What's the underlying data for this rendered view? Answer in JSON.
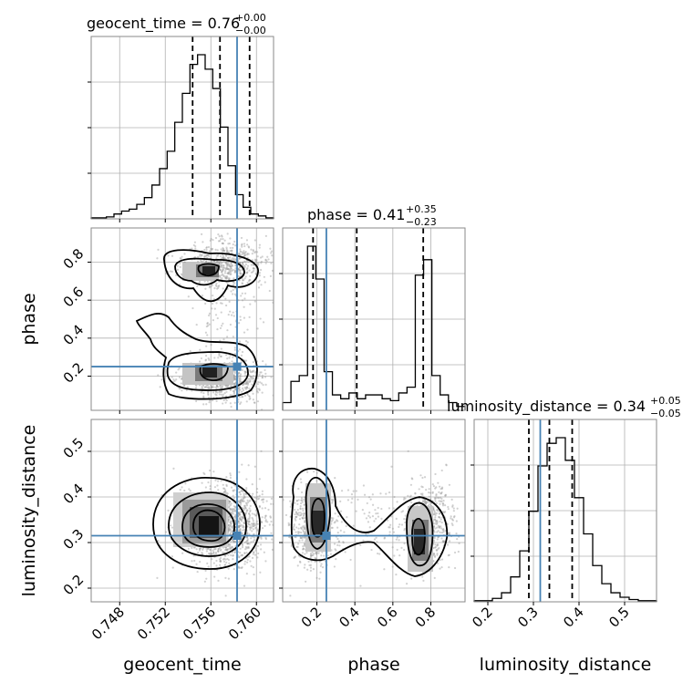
{
  "chart_data": {
    "type": "corner",
    "parameters": [
      "geocent_time",
      "phase",
      "luminosity_distance"
    ],
    "titles": [
      {
        "param": "geocent_time",
        "median": "0.76",
        "plus": "+0.00",
        "minus": "−0.00"
      },
      {
        "param": "phase",
        "median": "0.41",
        "plus": "+0.35",
        "minus": "−0.23"
      },
      {
        "param": "luminosity_distance",
        "median": "0.34",
        "plus": "+0.05",
        "minus": "−0.05"
      }
    ],
    "ranges": {
      "geocent_time": [
        0.7455,
        0.7615
      ],
      "phase": [
        0.02,
        0.98
      ],
      "luminosity_distance": [
        0.17,
        0.57
      ]
    },
    "ticks": {
      "geocent_time": [
        0.748,
        0.752,
        0.756,
        0.76
      ],
      "phase_x": [
        0.2,
        0.4,
        0.6,
        0.8
      ],
      "phase_y": [
        0.2,
        0.4,
        0.6,
        0.8
      ],
      "luminosity_distance_x": [
        0.2,
        0.3,
        0.4,
        0.5
      ],
      "luminosity_distance_y": [
        0.2,
        0.3,
        0.4,
        0.5
      ]
    },
    "tick_labels": {
      "geocent_time": [
        "0.748",
        "0.752",
        "0.756",
        "0.760"
      ],
      "phase": [
        "0.2",
        "0.4",
        "0.6",
        "0.8"
      ],
      "luminosity_distance": [
        "0.2",
        "0.3",
        "0.4",
        "0.5"
      ]
    },
    "truths": {
      "geocent_time": 0.7583,
      "phase": 0.25,
      "luminosity_distance": 0.315
    },
    "quantiles": {
      "geocent_time": [
        0.7544,
        0.7568,
        0.7594
      ],
      "phase": [
        0.18,
        0.41,
        0.76
      ],
      "luminosity_distance": [
        0.29,
        0.335,
        0.385
      ]
    },
    "histograms": {
      "geocent_time": {
        "range": [
          0.7455,
          0.7615
        ],
        "counts": [
          1,
          1,
          2,
          5,
          8,
          10,
          15,
          22,
          35,
          52,
          70,
          100,
          130,
          160,
          170,
          155,
          135,
          95,
          55,
          25,
          12,
          5,
          3,
          1
        ]
      },
      "phase": {
        "range": [
          0.02,
          0.98
        ],
        "counts": [
          4,
          15,
          18,
          85,
          68,
          20,
          8,
          6,
          9,
          6,
          8,
          8,
          6,
          5,
          9,
          12,
          70,
          78,
          18,
          8,
          4,
          2
        ]
      },
      "luminosity_distance": {
        "range": [
          0.17,
          0.57
        ],
        "counts": [
          1,
          1,
          3,
          8,
          22,
          45,
          80,
          120,
          140,
          145,
          125,
          92,
          60,
          32,
          16,
          8,
          4,
          2,
          1,
          1
        ]
      }
    },
    "grid": true
  }
}
